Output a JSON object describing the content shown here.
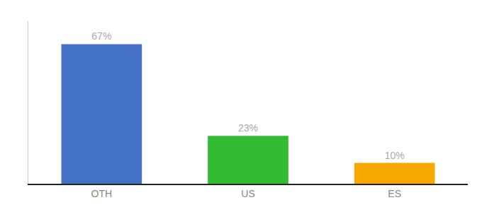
{
  "chart_data": {
    "type": "bar",
    "categories": [
      "OTH",
      "US",
      "ES"
    ],
    "values": [
      67,
      23,
      10
    ],
    "value_labels": [
      "67%",
      "23%",
      "10%"
    ],
    "colors": [
      "#4472c4",
      "#33bb33",
      "#f5a800"
    ],
    "ylim": [
      0,
      78
    ],
    "data_labels": true,
    "tick_labels": "x",
    "grid": false
  }
}
